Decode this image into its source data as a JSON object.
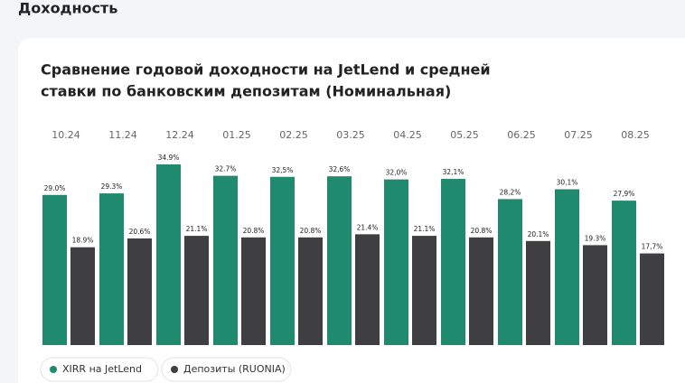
{
  "page_heading": "Доходность",
  "chart_data": {
    "type": "bar",
    "title": [
      "Сравнение годовой доходности на JetLend и средней",
      "ставки по банковским депозитам (Номинальная)"
    ],
    "categories": [
      "10.24",
      "11.24",
      "12.24",
      "01.25",
      "02.25",
      "03.25",
      "04.25",
      "05.25",
      "06.25",
      "07.25",
      "08.25"
    ],
    "series": [
      {
        "name": "XIRR на JetLend",
        "color": "#1f8a6d",
        "values": [
          29.0,
          29.3,
          34.9,
          32.7,
          32.5,
          32.6,
          32.0,
          32.1,
          28.2,
          30.1,
          27.9
        ],
        "value_labels": [
          "29.0%",
          "29.3%",
          "34.9%",
          "32.7%",
          "32,5%",
          "32,6%",
          "32,0%",
          "32,1%",
          "28,2%",
          "30,1%",
          "27,9%"
        ]
      },
      {
        "name": "Депозиты (RUONIA)",
        "color": "#3f3f41",
        "values": [
          18.9,
          20.6,
          21.1,
          20.8,
          20.8,
          21.4,
          21.1,
          20.8,
          20.1,
          19.3,
          17.7
        ],
        "value_labels": [
          "18.9%",
          "20.6%",
          "21.1%",
          "20.8%",
          "20.8%",
          "21.4%",
          "21.1%",
          "20.8%",
          "20.1%",
          "19.3%",
          "17,7%"
        ]
      }
    ],
    "legend": "bottom-left"
  }
}
